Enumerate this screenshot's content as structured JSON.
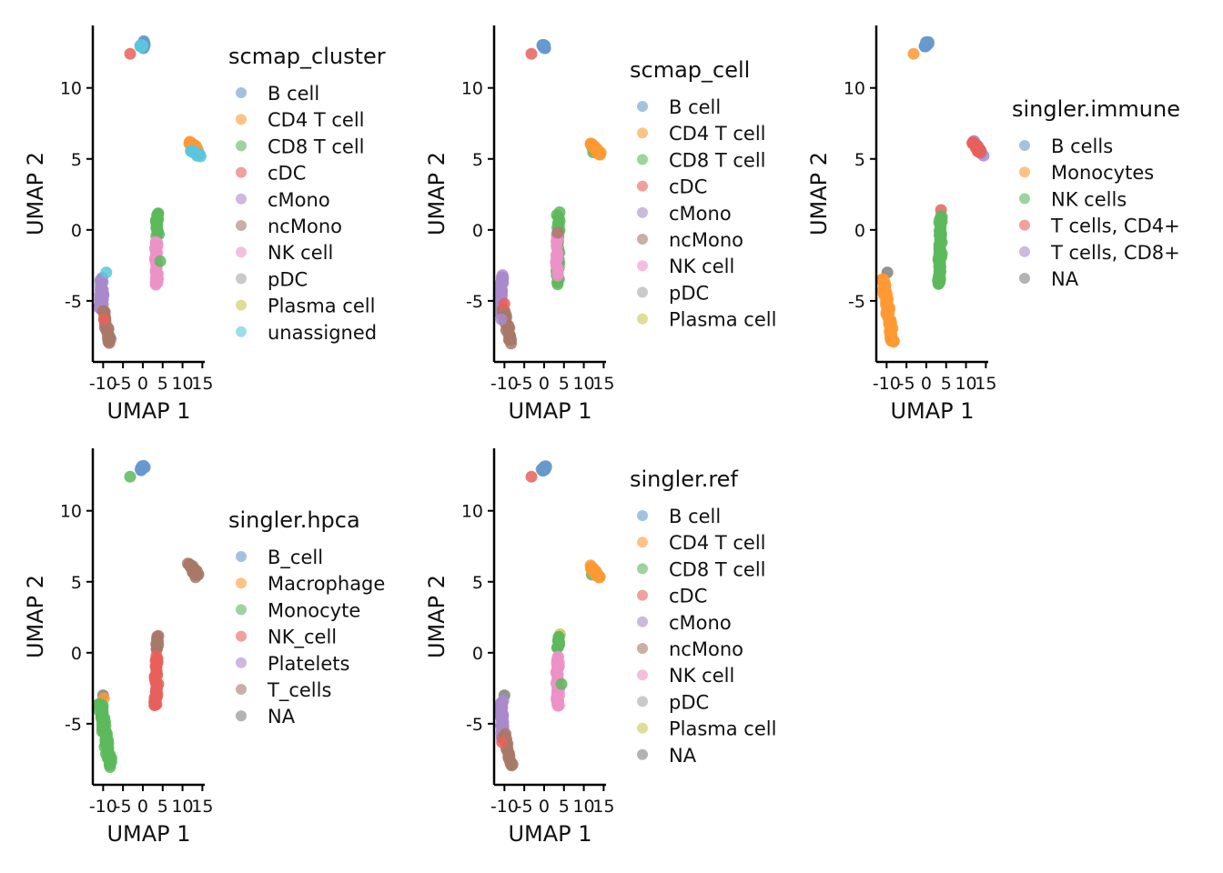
{
  "chart_data": [
    {
      "type": "scatter",
      "title": "",
      "xlabel": "UMAP 1",
      "ylabel": "UMAP 2",
      "xlim": [
        -12.6,
        15.6
      ],
      "ylim": [
        -9.3,
        14.4
      ],
      "xticks": [
        -10,
        -5,
        0,
        5,
        10,
        15
      ],
      "yticks": [
        -5,
        0,
        5,
        10
      ],
      "grid": false,
      "legend": {
        "title": "scmap_cluster",
        "placement": "right",
        "entries": [
          {
            "label": "B cell",
            "color": "#6699cc"
          },
          {
            "label": "CD4 T cell",
            "color": "#ff9933"
          },
          {
            "label": "CD8 T cell",
            "color": "#5cb85c"
          },
          {
            "label": "cDC",
            "color": "#e8605a"
          },
          {
            "label": "cMono",
            "color": "#a98acb"
          },
          {
            "label": "ncMono",
            "color": "#a87868"
          },
          {
            "label": "NK cell",
            "color": "#ec92c8"
          },
          {
            "label": "pDC",
            "color": "#a6a6a6"
          },
          {
            "label": "Plasma cell",
            "color": "#c8c854"
          },
          {
            "label": "unassigned",
            "color": "#5bc6da"
          }
        ]
      },
      "clusters": [
        {
          "label": "B cell",
          "path": [
            [
              0.2,
              13.2
            ],
            [
              0.3,
              12.8
            ]
          ],
          "n": 18,
          "spread": 0.35
        },
        {
          "label": "unassigned",
          "path": [
            [
              -0.6,
              12.9
            ],
            [
              0.0,
              13.0
            ]
          ],
          "n": 6,
          "spread": 0.25
        },
        {
          "label": "cDC",
          "path": [
            [
              -3.2,
              12.4
            ],
            [
              -3.2,
              12.4
            ]
          ],
          "n": 1,
          "spread": 0
        },
        {
          "label": "CD4 T cell",
          "path": [
            [
              11.8,
              6.2
            ],
            [
              13.6,
              5.7
            ]
          ],
          "n": 20,
          "spread": 0.35
        },
        {
          "label": "unassigned",
          "path": [
            [
              12.0,
              5.6
            ],
            [
              14.3,
              5.2
            ]
          ],
          "n": 10,
          "spread": 0.3
        },
        {
          "label": "CD8 T cell",
          "path": [
            [
              3.7,
              1.2
            ],
            [
              3.6,
              -0.4
            ]
          ],
          "n": 20,
          "spread": 0.3
        },
        {
          "label": "NK cell",
          "path": [
            [
              3.4,
              -0.8
            ],
            [
              3.4,
              -3.8
            ]
          ],
          "n": 45,
          "spread": 0.35
        },
        {
          "label": "CD8 T cell",
          "path": [
            [
              4.4,
              -2.2
            ],
            [
              4.4,
              -2.2
            ]
          ],
          "n": 1,
          "spread": 0
        },
        {
          "label": "cMono",
          "path": [
            [
              -10.3,
              -3.4
            ],
            [
              -10.6,
              -5.6
            ]
          ],
          "n": 40,
          "spread": 0.45
        },
        {
          "label": "ncMono",
          "path": [
            [
              -10.0,
              -5.6
            ],
            [
              -8.3,
              -8.0
            ]
          ],
          "n": 30,
          "spread": 0.4
        },
        {
          "label": "cDC",
          "path": [
            [
              -9.8,
              -6.3
            ],
            [
              -9.8,
              -6.3
            ]
          ],
          "n": 1,
          "spread": 0
        },
        {
          "label": "unassigned",
          "path": [
            [
              -9.2,
              -3.0
            ],
            [
              -9.2,
              -3.0
            ]
          ],
          "n": 1,
          "spread": 0
        }
      ]
    },
    {
      "type": "scatter",
      "title": "",
      "xlabel": "UMAP 1",
      "ylabel": "UMAP 2",
      "xlim": [
        -12.6,
        15.6
      ],
      "ylim": [
        -9.3,
        14.4
      ],
      "xticks": [
        -10,
        -5,
        0,
        5,
        10,
        15
      ],
      "yticks": [
        -5,
        0,
        5,
        10
      ],
      "grid": false,
      "legend": {
        "title": "scmap_cell",
        "placement": "right",
        "entries": [
          {
            "label": "B cell",
            "color": "#6699cc"
          },
          {
            "label": "CD4 T cell",
            "color": "#ff9933"
          },
          {
            "label": "CD8 T cell",
            "color": "#5cb85c"
          },
          {
            "label": "cDC",
            "color": "#e8605a"
          },
          {
            "label": "cMono",
            "color": "#a98acb"
          },
          {
            "label": "ncMono",
            "color": "#a87868"
          },
          {
            "label": "NK cell",
            "color": "#ec92c8"
          },
          {
            "label": "pDC",
            "color": "#a6a6a6"
          },
          {
            "label": "Plasma cell",
            "color": "#c8c854"
          }
        ]
      },
      "clusters": [
        {
          "label": "B cell",
          "path": [
            [
              -0.3,
              13.0
            ],
            [
              0.3,
              12.9
            ]
          ],
          "n": 20,
          "spread": 0.35
        },
        {
          "label": "cDC",
          "path": [
            [
              -3.2,
              12.4
            ],
            [
              -3.2,
              12.4
            ]
          ],
          "n": 1,
          "spread": 0
        },
        {
          "label": "CD8 T cell",
          "path": [
            [
              11.9,
              6.0
            ],
            [
              12.4,
              5.5
            ]
          ],
          "n": 6,
          "spread": 0.3
        },
        {
          "label": "CD4 T cell",
          "path": [
            [
              11.8,
              6.1
            ],
            [
              14.0,
              5.3
            ]
          ],
          "n": 24,
          "spread": 0.35
        },
        {
          "label": "CD8 T cell",
          "path": [
            [
              3.7,
              1.2
            ],
            [
              3.4,
              -3.8
            ]
          ],
          "n": 40,
          "spread": 0.35
        },
        {
          "label": "NK cell",
          "path": [
            [
              3.2,
              -0.3
            ],
            [
              3.3,
              -3.2
            ]
          ],
          "n": 18,
          "spread": 0.3
        },
        {
          "label": "ncMono",
          "path": [
            [
              3.4,
              -0.2
            ],
            [
              3.4,
              -0.2
            ]
          ],
          "n": 1,
          "spread": 0
        },
        {
          "label": "cMono",
          "path": [
            [
              -10.6,
              -3.2
            ],
            [
              -11.0,
              -5.8
            ]
          ],
          "n": 32,
          "spread": 0.45
        },
        {
          "label": "ncMono",
          "path": [
            [
              -10.4,
              -5.5
            ],
            [
              -8.3,
              -8.0
            ]
          ],
          "n": 30,
          "spread": 0.4
        },
        {
          "label": "cDC",
          "path": [
            [
              -10.0,
              -5.2
            ],
            [
              -10.0,
              -5.2
            ]
          ],
          "n": 1,
          "spread": 0
        },
        {
          "label": "cMono",
          "path": [
            [
              -10.8,
              -6.3
            ],
            [
              -10.8,
              -6.3
            ]
          ],
          "n": 1,
          "spread": 0
        }
      ]
    },
    {
      "type": "scatter",
      "title": "",
      "xlabel": "UMAP 1",
      "ylabel": "UMAP 2",
      "xlim": [
        -12.6,
        15.6
      ],
      "ylim": [
        -9.3,
        14.4
      ],
      "xticks": [
        -10,
        -5,
        0,
        5,
        10,
        15
      ],
      "yticks": [
        -5,
        0,
        5,
        10
      ],
      "grid": false,
      "legend": {
        "title": "singler.immune",
        "placement": "right",
        "entries": [
          {
            "label": "B cells",
            "color": "#6699cc"
          },
          {
            "label": "Monocytes",
            "color": "#ff9933"
          },
          {
            "label": "NK cells",
            "color": "#5cb85c"
          },
          {
            "label": "T cells, CD4+",
            "color": "#e8605a"
          },
          {
            "label": "T cells, CD8+",
            "color": "#a98acb"
          },
          {
            "label": "NA",
            "color": "#808080"
          }
        ]
      },
      "clusters": [
        {
          "label": "B cells",
          "path": [
            [
              -0.4,
              12.9
            ],
            [
              0.4,
              13.2
            ]
          ],
          "n": 20,
          "spread": 0.35
        },
        {
          "label": "Monocytes",
          "path": [
            [
              -3.2,
              12.4
            ],
            [
              -3.2,
              12.4
            ]
          ],
          "n": 1,
          "spread": 0
        },
        {
          "label": "T cells, CD8+",
          "path": [
            [
              12.0,
              6.3
            ],
            [
              14.2,
              5.2
            ]
          ],
          "n": 8,
          "spread": 0.3
        },
        {
          "label": "T cells, CD4+",
          "path": [
            [
              11.8,
              6.1
            ],
            [
              13.5,
              5.5
            ]
          ],
          "n": 24,
          "spread": 0.35
        },
        {
          "label": "T cells, CD4+",
          "path": [
            [
              3.7,
              1.4
            ],
            [
              3.7,
              1.4
            ]
          ],
          "n": 1,
          "spread": 0
        },
        {
          "label": "NK cells",
          "path": [
            [
              3.6,
              1.0
            ],
            [
              3.2,
              -3.8
            ]
          ],
          "n": 55,
          "spread": 0.4
        },
        {
          "label": "NA",
          "path": [
            [
              -9.8,
              -3.0
            ],
            [
              -9.8,
              -3.0
            ]
          ],
          "n": 1,
          "spread": 0
        },
        {
          "label": "Monocytes",
          "path": [
            [
              -10.9,
              -3.4
            ],
            [
              -8.4,
              -8.0
            ]
          ],
          "n": 60,
          "spread": 0.5
        }
      ]
    },
    {
      "type": "scatter",
      "title": "",
      "xlabel": "UMAP 1",
      "ylabel": "UMAP 2",
      "xlim": [
        -12.6,
        15.6
      ],
      "ylim": [
        -9.3,
        14.4
      ],
      "xticks": [
        -10,
        -5,
        0,
        5,
        10,
        15
      ],
      "yticks": [
        -5,
        0,
        5,
        10
      ],
      "grid": false,
      "legend": {
        "title": "singler.hpca",
        "placement": "right",
        "entries": [
          {
            "label": "B_cell",
            "color": "#6699cc"
          },
          {
            "label": "Macrophage",
            "color": "#ff9933"
          },
          {
            "label": "Monocyte",
            "color": "#5cb85c"
          },
          {
            "label": "NK_cell",
            "color": "#e8605a"
          },
          {
            "label": "Platelets",
            "color": "#a98acb"
          },
          {
            "label": "T_cells",
            "color": "#a87868"
          },
          {
            "label": "NA",
            "color": "#808080"
          }
        ]
      },
      "clusters": [
        {
          "label": "B_cell",
          "path": [
            [
              -0.4,
              12.9
            ],
            [
              0.3,
              13.1
            ]
          ],
          "n": 20,
          "spread": 0.35
        },
        {
          "label": "Monocyte",
          "path": [
            [
              -3.2,
              12.4
            ],
            [
              -3.2,
              12.4
            ]
          ],
          "n": 1,
          "spread": 0
        },
        {
          "label": "T_cells",
          "path": [
            [
              11.8,
              6.2
            ],
            [
              13.8,
              5.4
            ]
          ],
          "n": 26,
          "spread": 0.4
        },
        {
          "label": "T_cells",
          "path": [
            [
              3.6,
              1.2
            ],
            [
              3.6,
              0.2
            ]
          ],
          "n": 14,
          "spread": 0.3
        },
        {
          "label": "NK_cell",
          "path": [
            [
              3.5,
              -0.3
            ],
            [
              3.3,
              -3.8
            ]
          ],
          "n": 45,
          "spread": 0.4
        },
        {
          "label": "NA",
          "path": [
            [
              -10.0,
              -3.0
            ],
            [
              -10.0,
              -3.0
            ]
          ],
          "n": 1,
          "spread": 0
        },
        {
          "label": "Macrophage",
          "path": [
            [
              -9.8,
              -3.2
            ],
            [
              -9.8,
              -3.2
            ]
          ],
          "n": 1,
          "spread": 0
        },
        {
          "label": "Monocyte",
          "path": [
            [
              -10.8,
              -3.5
            ],
            [
              -8.2,
              -8.0
            ]
          ],
          "n": 60,
          "spread": 0.5
        }
      ]
    },
    {
      "type": "scatter",
      "title": "",
      "xlabel": "UMAP 1",
      "ylabel": "UMAP 2",
      "xlim": [
        -12.6,
        15.6
      ],
      "ylim": [
        -9.3,
        14.4
      ],
      "xticks": [
        -10,
        -5,
        0,
        5,
        10,
        15
      ],
      "yticks": [
        -5,
        0,
        5,
        10
      ],
      "grid": false,
      "legend": {
        "title": "singler.ref",
        "placement": "right",
        "entries": [
          {
            "label": "B cell",
            "color": "#6699cc"
          },
          {
            "label": "CD4 T cell",
            "color": "#ff9933"
          },
          {
            "label": "CD8 T cell",
            "color": "#5cb85c"
          },
          {
            "label": "cDC",
            "color": "#e8605a"
          },
          {
            "label": "cMono",
            "color": "#a98acb"
          },
          {
            "label": "ncMono",
            "color": "#a87868"
          },
          {
            "label": "NK cell",
            "color": "#ec92c8"
          },
          {
            "label": "pDC",
            "color": "#a6a6a6"
          },
          {
            "label": "Plasma cell",
            "color": "#c8c854"
          },
          {
            "label": "NA",
            "color": "#808080"
          }
        ]
      },
      "clusters": [
        {
          "label": "B cell",
          "path": [
            [
              -0.4,
              12.9
            ],
            [
              0.4,
              13.1
            ]
          ],
          "n": 20,
          "spread": 0.35
        },
        {
          "label": "cDC",
          "path": [
            [
              -3.2,
              12.4
            ],
            [
              -3.2,
              12.4
            ]
          ],
          "n": 1,
          "spread": 0
        },
        {
          "label": "CD8 T cell",
          "path": [
            [
              12.0,
              5.5
            ],
            [
              12.0,
              5.5
            ]
          ],
          "n": 1,
          "spread": 0
        },
        {
          "label": "CD4 T cell",
          "path": [
            [
              11.8,
              6.1
            ],
            [
              13.8,
              5.3
            ]
          ],
          "n": 26,
          "spread": 0.35
        },
        {
          "label": "Plasma cell",
          "path": [
            [
              4.0,
              1.3
            ],
            [
              4.0,
              1.3
            ]
          ],
          "n": 1,
          "spread": 0
        },
        {
          "label": "CD8 T cell",
          "path": [
            [
              3.7,
              1.1
            ],
            [
              3.6,
              0.3
            ]
          ],
          "n": 12,
          "spread": 0.3
        },
        {
          "label": "NK cell",
          "path": [
            [
              3.4,
              -0.3
            ],
            [
              3.4,
              -3.8
            ]
          ],
          "n": 45,
          "spread": 0.35
        },
        {
          "label": "CD8 T cell",
          "path": [
            [
              4.4,
              -2.2
            ],
            [
              4.4,
              -2.2
            ]
          ],
          "n": 1,
          "spread": 0
        },
        {
          "label": "NA",
          "path": [
            [
              -10.0,
              -3.0
            ],
            [
              -10.0,
              -3.0
            ]
          ],
          "n": 1,
          "spread": 0
        },
        {
          "label": "cMono",
          "path": [
            [
              -10.8,
              -3.4
            ],
            [
              -10.4,
              -6.0
            ]
          ],
          "n": 38,
          "spread": 0.45
        },
        {
          "label": "ncMono",
          "path": [
            [
              -10.0,
              -5.8
            ],
            [
              -8.3,
              -8.0
            ]
          ],
          "n": 26,
          "spread": 0.4
        },
        {
          "label": "cDC",
          "path": [
            [
              -10.6,
              -6.3
            ],
            [
              -10.6,
              -6.3
            ]
          ],
          "n": 1,
          "spread": 0
        }
      ]
    }
  ]
}
